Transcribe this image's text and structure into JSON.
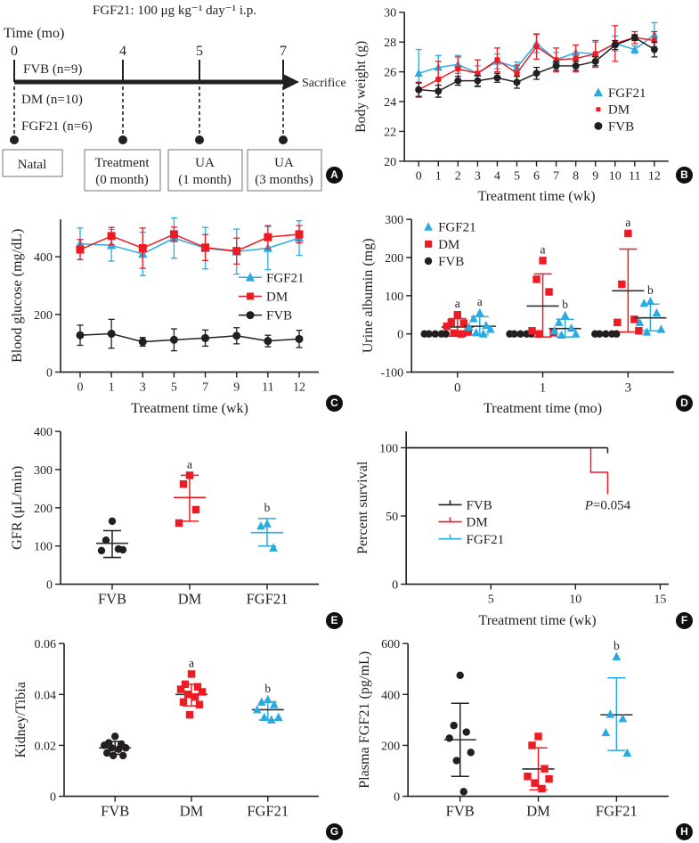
{
  "badges": [
    "A",
    "B",
    "C",
    "D",
    "E",
    "F",
    "G",
    "H"
  ],
  "colors": {
    "fgf21_blue": "#29abe2",
    "dm_red": "#ed1c24",
    "fvb_black": "#231f20",
    "ink": "#231f20",
    "box_border": "#8d8d8d"
  },
  "timeline": {
    "title": "FGF21: 100 μg kg⁻¹ day⁻¹ i.p.",
    "axis_label": "Time (mo)",
    "tick_labels": [
      "0",
      "4",
      "5",
      "7"
    ],
    "groups": [
      "FVB (n=9)",
      "DM (n=10)",
      "FGF21 (n=6)"
    ],
    "sacrifice_label": "Sacrifice",
    "boxes": [
      {
        "line1": "Natal",
        "line2": ""
      },
      {
        "line1": "Treatment",
        "line2": "(0 month)"
      },
      {
        "line1": "UA",
        "line2": "(1 month)"
      },
      {
        "line1": "UA",
        "line2": "(3 months)"
      }
    ]
  },
  "chart_data": [
    {
      "panel": "B",
      "type": "line",
      "title": "",
      "xlabel": "Treatment time (wk)",
      "ylabel": "Body weight (g)",
      "ylim": [
        20,
        30
      ],
      "yticks": [
        20,
        22,
        24,
        26,
        28,
        30
      ],
      "xticklabels": [
        "0",
        "1",
        "2",
        "3",
        "4",
        "5",
        "6",
        "7",
        "8",
        "9",
        "10",
        "11",
        "12"
      ],
      "xpad": 16,
      "margin": {
        "l": 62
      },
      "legend": {
        "x": 0.7,
        "y": 0.54,
        "dy": 19,
        "items": [
          {
            "label": "FGF21",
            "marker": "triangle",
            "color": "#29abe2",
            "msize": 4.5
          },
          {
            "label": "DM",
            "marker": "square",
            "color": "#ed1c24",
            "msize": 2.5
          },
          {
            "label": "FVB",
            "marker": "circle",
            "color": "#231f20",
            "msize": 4.5
          }
        ]
      },
      "series": [
        {
          "name": "FGF21",
          "color": "#29abe2",
          "marker": "triangle",
          "msize": 4,
          "values": [
            25.9,
            26.3,
            26.5,
            25.9,
            26.7,
            26.3,
            27.9,
            26.8,
            27.3,
            27.2,
            27.9,
            27.5,
            28.5
          ],
          "err": [
            1.6,
            0.8,
            0.6,
            0.5,
            0.5,
            0.35,
            0.6,
            0.5,
            0.5,
            0.8,
            0.5,
            0.25,
            0.8
          ]
        },
        {
          "name": "DM",
          "color": "#ed1c24",
          "marker": "square",
          "msize": 3,
          "values": [
            24.8,
            25.5,
            26.2,
            25.9,
            26.8,
            25.9,
            27.7,
            26.8,
            26.9,
            27.2,
            27.9,
            28.3,
            28.1
          ],
          "err": [
            0.5,
            1.2,
            0.8,
            0.9,
            0.8,
            0.55,
            0.85,
            0.8,
            0.9,
            0.9,
            1.2,
            0.4,
            0.6
          ]
        },
        {
          "name": "FVB",
          "color": "#231f20",
          "marker": "circle",
          "msize": 4,
          "values": [
            24.8,
            24.7,
            25.4,
            25.4,
            25.6,
            25.3,
            25.9,
            26.4,
            26.4,
            26.7,
            27.8,
            28.3,
            27.5
          ],
          "err": [
            0.45,
            0.4,
            0.3,
            0.35,
            0.3,
            0.4,
            0.4,
            0.3,
            0.3,
            0.3,
            0.3,
            0.2,
            0.5
          ]
        }
      ]
    },
    {
      "panel": "C",
      "type": "line",
      "title": "",
      "xlabel": "Treatment time (wk)",
      "ylabel": "Blood glucose (mg/dL)",
      "ylim": [
        0,
        530
      ],
      "yticks": [
        0,
        200,
        400
      ],
      "xticklabels": [
        "0",
        "1",
        "3",
        "5",
        "7",
        "9",
        "11",
        "12"
      ],
      "xpad": 22,
      "margin": {
        "l": 68
      },
      "legend": {
        "x": 0.7,
        "y": 0.38,
        "dy": 21,
        "line_stub": true,
        "items": [
          {
            "label": "FGF21",
            "marker": "triangle",
            "color": "#29abe2",
            "msize": 4.5
          },
          {
            "label": "DM",
            "marker": "square",
            "color": "#ed1c24",
            "msize": 4
          },
          {
            "label": "FVB",
            "marker": "circle",
            "color": "#231f20",
            "msize": 4.5
          }
        ]
      },
      "series": [
        {
          "name": "FGF21",
          "color": "#29abe2",
          "marker": "triangle",
          "msize": 4.5,
          "values": [
            445,
            440,
            410,
            465,
            430,
            418,
            430,
            465
          ],
          "err": [
            55,
            55,
            75,
            70,
            72,
            78,
            75,
            60
          ]
        },
        {
          "name": "DM",
          "color": "#ed1c24",
          "marker": "square",
          "msize": 4.5,
          "values": [
            425,
            472,
            430,
            478,
            432,
            420,
            468,
            478
          ],
          "err": [
            35,
            30,
            70,
            25,
            45,
            45,
            40,
            30
          ]
        },
        {
          "name": "FVB",
          "color": "#231f20",
          "marker": "circle",
          "msize": 4.5,
          "values": [
            128,
            133,
            105,
            112,
            118,
            126,
            108,
            115
          ],
          "err": [
            35,
            50,
            15,
            38,
            28,
            28,
            20,
            30
          ]
        }
      ]
    },
    {
      "panel": "D",
      "type": "scatter",
      "title": "",
      "xlabel": "Treatment time (mo)",
      "ylabel": "Urine albumin (mg)",
      "ylim": [
        -100,
        300
      ],
      "yticks": [
        -100,
        0,
        100,
        200,
        300
      ],
      "xticks": [
        {
          "label": "0",
          "x": 0.175
        },
        {
          "label": "1",
          "x": 0.5
        },
        {
          "label": "3",
          "x": 0.825
        }
      ],
      "xtick_size": 15,
      "margin": {
        "l": 70,
        "r": 28
      },
      "legend": {
        "x": 0.03,
        "y": 0.05,
        "dy": 19,
        "items": [
          {
            "label": "FGF21",
            "marker": "triangle",
            "color": "#29abe2",
            "msize": 4.2
          },
          {
            "label": "DM",
            "marker": "square",
            "color": "#ed1c24",
            "msize": 4
          },
          {
            "label": "FVB",
            "marker": "circle",
            "color": "#231f20",
            "msize": 4.2
          }
        ]
      },
      "clusters": [
        {
          "group": "FVB 0mo",
          "x": 0.09,
          "color": "#231f20",
          "marker": "circle",
          "points": [
            0,
            0,
            0,
            0,
            0
          ]
        },
        {
          "group": "DM 0mo",
          "x": 0.175,
          "color": "#ed1c24",
          "marker": "square",
          "points": [
            50,
            30,
            28,
            20,
            5,
            2,
            0
          ],
          "mean": 18,
          "lo": -6,
          "hi": 40,
          "sig": "a"
        },
        {
          "group": "FGF21 0mo",
          "x": 0.26,
          "color": "#29abe2",
          "marker": "triangle",
          "points": [
            55,
            40,
            22,
            18,
            12,
            3,
            0
          ],
          "mean": 20,
          "lo": -2,
          "hi": 45,
          "sig": "a"
        },
        {
          "group": "FVB 1mo",
          "x": 0.415,
          "color": "#231f20",
          "marker": "circle",
          "points": [
            0,
            0,
            0,
            0,
            0
          ]
        },
        {
          "group": "DM 1mo",
          "x": 0.5,
          "color": "#ed1c24",
          "marker": "square",
          "points": [
            192,
            143,
            110,
            8,
            3,
            0
          ],
          "mean": 73,
          "lo": -8,
          "hi": 157,
          "sig": "a"
        },
        {
          "group": "FGF21 1mo",
          "x": 0.585,
          "color": "#29abe2",
          "marker": "triangle",
          "points": [
            48,
            30,
            15,
            8,
            0,
            -3
          ],
          "mean": 14,
          "lo": -8,
          "hi": 38,
          "sig": "b"
        },
        {
          "group": "FVB 3mo",
          "x": 0.74,
          "color": "#231f20",
          "marker": "circle",
          "points": [
            0,
            0,
            0,
            0,
            0
          ]
        },
        {
          "group": "DM 3mo",
          "x": 0.825,
          "color": "#ed1c24",
          "marker": "square",
          "points": [
            263,
            130,
            38,
            30,
            8
          ],
          "mean": 113,
          "lo": 5,
          "hi": 222,
          "sig": "a"
        },
        {
          "group": "FGF21 3mo",
          "x": 0.91,
          "color": "#29abe2",
          "marker": "triangle",
          "points": [
            85,
            80,
            55,
            30,
            12,
            5
          ],
          "mean": 42,
          "lo": 8,
          "hi": 78,
          "sig": "b"
        }
      ]
    },
    {
      "panel": "E",
      "type": "scatter",
      "title": "",
      "xlabel": "",
      "ylabel": "GFR (μL/min)",
      "ylim": [
        0,
        400
      ],
      "yticks": [
        0,
        100,
        200,
        300,
        400
      ],
      "xticks": [
        {
          "label": "FVB",
          "x": 0.2
        },
        {
          "label": "DM",
          "x": 0.5
        },
        {
          "label": "FGF21",
          "x": 0.8
        }
      ],
      "xtick_size": 16.5,
      "margin": {
        "l": 68
      },
      "clusters": [
        {
          "group": "FVB",
          "x": 0.2,
          "color": "#231f20",
          "marker": "circle",
          "points": [
            165,
            115,
            92,
            88,
            90
          ],
          "mean": 107,
          "lo": 70,
          "hi": 140
        },
        {
          "group": "DM",
          "x": 0.5,
          "color": "#ed1c24",
          "marker": "square",
          "points": [
            285,
            262,
            195,
            160
          ],
          "mean": 227,
          "lo": 165,
          "hi": 285,
          "meanColor": "#ed1c24",
          "sig": "a"
        },
        {
          "group": "FGF21",
          "x": 0.8,
          "color": "#29abe2",
          "marker": "triangle",
          "points": [
            158,
            152,
            95
          ],
          "mean": 135,
          "lo": 100,
          "hi": 172,
          "meanColor": "#29abe2",
          "sig": "b"
        }
      ]
    },
    {
      "panel": "F",
      "type": "survival",
      "title": "",
      "xlabel": "Treatment time (wk)",
      "ylabel": "Percent survival",
      "xlim": [
        0,
        15.5
      ],
      "xticks": [
        5,
        10,
        15
      ],
      "ylim": [
        0,
        112
      ],
      "yticks": [
        0,
        50,
        100
      ],
      "margin": {
        "l": 64
      },
      "annotation": {
        "pre": "P",
        "post": "=0.054",
        "x": 11.9,
        "y": 55
      },
      "legend": {
        "x": 0.13,
        "y": 0.48,
        "dy": 19,
        "km": true,
        "items": [
          {
            "label": "FVB",
            "color": "#231f20"
          },
          {
            "label": "DM",
            "color": "#ed1c24"
          },
          {
            "label": "FGF21",
            "color": "#29abe2"
          }
        ]
      },
      "series": [
        {
          "name": "FGF21",
          "color": "#29abe2",
          "steps": [
            [
              0,
              100
            ],
            [
              11.9,
              100
            ]
          ]
        },
        {
          "name": "DM",
          "color": "#ed1c24",
          "steps": [
            [
              0,
              100
            ],
            [
              10.9,
              100
            ],
            [
              10.9,
              82
            ],
            [
              11.9,
              82
            ],
            [
              11.9,
              66
            ]
          ]
        },
        {
          "name": "FVB",
          "color": "#231f20",
          "steps": [
            [
              0,
              100
            ],
            [
              11.9,
              100
            ]
          ],
          "end_tick": true
        }
      ]
    },
    {
      "panel": "G",
      "type": "scatter",
      "title": "",
      "xlabel": "",
      "ylabel": "Kidney/Tibia",
      "ylim": [
        0,
        0.06
      ],
      "yticks": [
        0,
        0.02,
        0.04,
        0.06
      ],
      "yticklabels": [
        "0",
        "0.02",
        "0.04",
        "0.06"
      ],
      "xticks": [
        {
          "label": "FVB",
          "x": 0.2
        },
        {
          "label": "DM",
          "x": 0.5
        },
        {
          "label": "FGF21",
          "x": 0.8
        }
      ],
      "xtick_size": 16.5,
      "margin": {
        "l": 72
      },
      "clusters": [
        {
          "group": "FVB",
          "x": 0.2,
          "color": "#231f20",
          "marker": "circle",
          "points": [
            0.0235,
            0.021,
            0.0205,
            0.02,
            0.019,
            0.019,
            0.0185,
            0.017,
            0.016,
            0.016
          ],
          "mean": 0.019,
          "lo": 0.0165,
          "hi": 0.0215
        },
        {
          "group": "DM",
          "x": 0.5,
          "color": "#ed1c24",
          "marker": "square",
          "points": [
            0.048,
            0.044,
            0.043,
            0.042,
            0.041,
            0.04,
            0.039,
            0.037,
            0.036,
            0.032
          ],
          "mean": 0.04,
          "lo": 0.0355,
          "hi": 0.044,
          "sig": "a"
        },
        {
          "group": "FGF21",
          "x": 0.8,
          "color": "#29abe2",
          "marker": "triangle",
          "points": [
            0.038,
            0.037,
            0.036,
            0.034,
            0.031,
            0.031,
            0.03
          ],
          "mean": 0.034,
          "lo": 0.03,
          "hi": 0.037,
          "sig": "b"
        }
      ]
    },
    {
      "panel": "H",
      "type": "scatter",
      "title": "",
      "xlabel": "",
      "ylabel": "Plasma FGF21 (pg/mL)",
      "ylim": [
        0,
        600
      ],
      "yticks": [
        0,
        200,
        400,
        600
      ],
      "xticks": [
        {
          "label": "FVB",
          "x": 0.2
        },
        {
          "label": "DM",
          "x": 0.5
        },
        {
          "label": "FGF21",
          "x": 0.8
        }
      ],
      "xtick_size": 16.5,
      "margin": {
        "l": 66
      },
      "clusters": [
        {
          "group": "FVB",
          "x": 0.2,
          "color": "#231f20",
          "marker": "circle",
          "points": [
            475,
            278,
            252,
            228,
            172,
            140,
            18
          ],
          "mean": 222,
          "lo": 78,
          "hi": 365
        },
        {
          "group": "DM",
          "x": 0.5,
          "color": "#ed1c24",
          "marker": "square",
          "points": [
            235,
            200,
            108,
            78,
            68,
            52,
            30
          ],
          "mean": 107,
          "lo": 25,
          "hi": 190
        },
        {
          "group": "FGF21",
          "x": 0.8,
          "color": "#29abe2",
          "marker": "triangle",
          "points": [
            548,
            322,
            305,
            250,
            170
          ],
          "mean": 320,
          "lo": 180,
          "hi": 465,
          "sig": "b"
        }
      ]
    }
  ]
}
